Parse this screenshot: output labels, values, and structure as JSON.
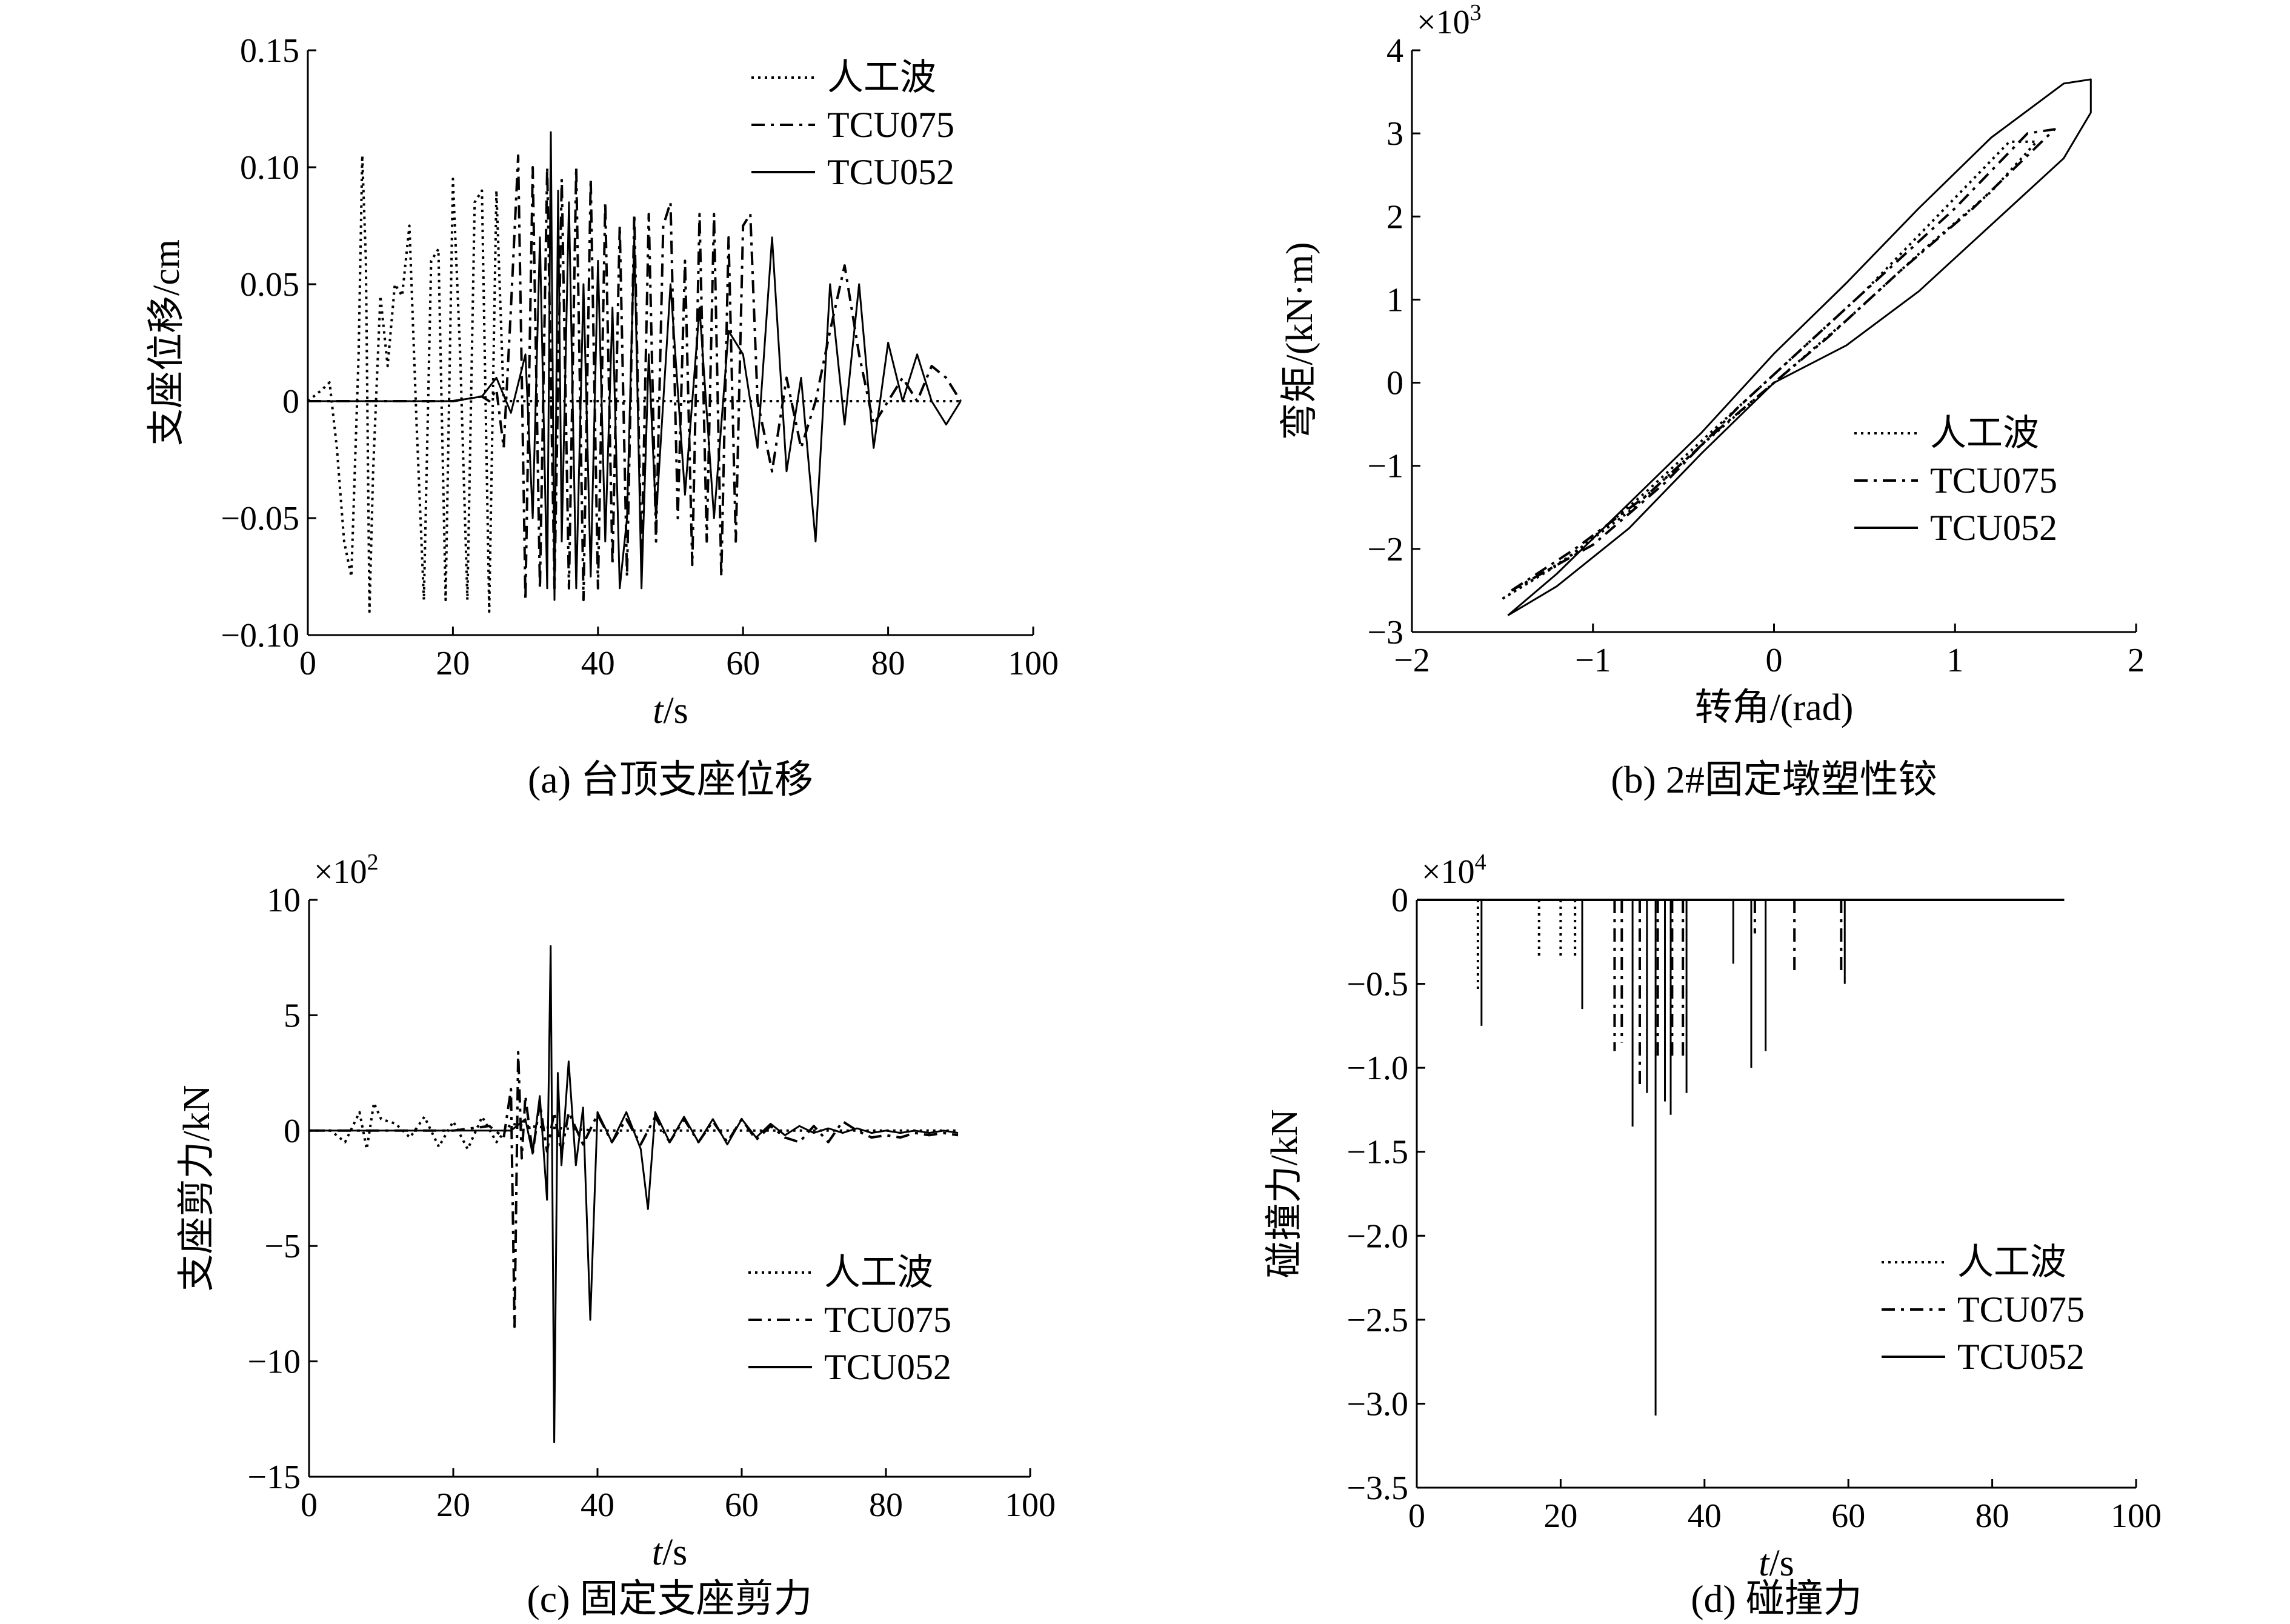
{
  "chart_data": [
    {
      "id": "a",
      "type": "line",
      "caption": "(a) 台顶支座位移",
      "xlabel_italic": "t",
      "xlabel_rest": "/s",
      "ylabel": "支座位移/cm",
      "xlim": [
        0,
        100
      ],
      "ylim": [
        -0.1,
        0.15
      ],
      "xticks": [
        0,
        20,
        40,
        60,
        80,
        100
      ],
      "xtick_labels": [
        "0",
        "20",
        "40",
        "60",
        "80",
        "100"
      ],
      "yticks": [
        0.15,
        0.1,
        0.05,
        0,
        -0.05,
        -0.1
      ],
      "ytick_labels": [
        "0.15",
        "0.10",
        "0.05",
        "0",
        "−0.05",
        "−0.10"
      ],
      "legend_position": "top-right",
      "series": [
        {
          "name": "人工波",
          "style": "dotted",
          "x": [
            0,
            2,
            3,
            4,
            5,
            6,
            7,
            7.5,
            8,
            8.5,
            9,
            10,
            11,
            12,
            13,
            14,
            15,
            16,
            17,
            18,
            19,
            20,
            21,
            22,
            23,
            24,
            25,
            26,
            27,
            28,
            30,
            35,
            40,
            50,
            60,
            70,
            80,
            90
          ],
          "y": [
            0,
            0.005,
            0.008,
            -0.02,
            -0.06,
            -0.075,
            0.02,
            0.105,
            0.06,
            -0.09,
            -0.03,
            0.045,
            0.015,
            0.05,
            0.045,
            0.075,
            -0.01,
            -0.085,
            0.06,
            0.065,
            -0.085,
            0.095,
            0.02,
            -0.085,
            0.085,
            0.09,
            -0.09,
            0.09,
            0.0,
            0.0,
            0.0,
            0.0,
            0.0,
            0.0,
            0.0,
            0.0,
            0.0,
            0.0
          ]
        },
        {
          "name": "TCU075",
          "style": "dashdot",
          "x": [
            0,
            10,
            20,
            24,
            25,
            26,
            27,
            28,
            29,
            30,
            31,
            32,
            33,
            34,
            35,
            36,
            37,
            38,
            39,
            40,
            41,
            42,
            43,
            44,
            45,
            46,
            47,
            48,
            49,
            50,
            51,
            52,
            53,
            54,
            55,
            56,
            57,
            58,
            59,
            60,
            61,
            62,
            64,
            66,
            68,
            70,
            72,
            74,
            76,
            78,
            80,
            82,
            84,
            86,
            88,
            90
          ],
          "y": [
            0,
            0,
            0,
            0.002,
            0.0,
            0.005,
            -0.02,
            0.04,
            0.105,
            -0.085,
            0.1,
            -0.08,
            0.1,
            -0.08,
            0.095,
            -0.08,
            0.1,
            -0.085,
            0.095,
            -0.08,
            0.085,
            -0.07,
            0.075,
            -0.075,
            0.08,
            -0.07,
            0.08,
            -0.06,
            0.075,
            0.085,
            -0.05,
            0.06,
            -0.07,
            0.08,
            -0.06,
            0.08,
            -0.075,
            0.07,
            -0.06,
            0.075,
            0.08,
            0.0,
            -0.03,
            0.01,
            -0.02,
            0.0,
            0.03,
            0.058,
            0.02,
            -0.01,
            0.0,
            0.01,
            0.0,
            0.015,
            0.01,
            0.0
          ]
        },
        {
          "name": "TCU052",
          "style": "solid",
          "x": [
            0,
            10,
            20,
            24,
            26,
            28,
            30,
            31,
            32,
            33,
            33.5,
            34,
            34.5,
            35,
            36,
            37,
            38,
            39,
            40,
            41,
            42,
            43,
            44,
            45,
            46,
            47,
            48,
            50,
            52,
            54,
            56,
            58,
            60,
            62,
            64,
            66,
            68,
            70,
            72,
            74,
            76,
            78,
            80,
            82,
            84,
            86,
            88,
            90
          ],
          "y": [
            0,
            0,
            0,
            0.002,
            0.01,
            -0.005,
            0.02,
            -0.05,
            0.07,
            -0.08,
            0.115,
            -0.085,
            0.09,
            -0.06,
            0.085,
            -0.08,
            0.05,
            -0.075,
            0.06,
            -0.06,
            0.04,
            -0.08,
            -0.05,
            0.07,
            -0.08,
            0.02,
            -0.05,
            0.05,
            -0.04,
            0.04,
            -0.05,
            0.03,
            0.02,
            -0.02,
            0.07,
            -0.03,
            0.01,
            -0.06,
            0.05,
            -0.01,
            0.05,
            -0.02,
            0.025,
            0.0,
            0.02,
            0.0,
            -0.01,
            0.0
          ]
        }
      ]
    },
    {
      "id": "b",
      "type": "line",
      "caption": "(b) 2#固定墩塑性铰",
      "xlabel": "转角/(rad)",
      "ylabel": "弯矩/(kN·m)",
      "multiplier_base": "×10",
      "multiplier_exp": "3",
      "xlim": [
        -2,
        2
      ],
      "ylim": [
        -3,
        4
      ],
      "xticks": [
        -2,
        -1,
        0,
        1,
        2
      ],
      "xtick_labels": [
        "−2",
        "−1",
        "0",
        "1",
        "2"
      ],
      "yticks": [
        4,
        3,
        2,
        1,
        0,
        -1,
        -2,
        -3
      ],
      "ytick_labels": [
        "4",
        "3",
        "2",
        "1",
        "0",
        "−1",
        "−2",
        "−3"
      ],
      "legend_position": "bottom-right",
      "series": [
        {
          "name": "人工波",
          "style": "dotted",
          "x": [
            -1.5,
            -1.2,
            -0.8,
            -0.4,
            0,
            0.4,
            0.8,
            1.2,
            1.45,
            1.3,
            0.9,
            0.5,
            0.1,
            -0.3,
            -0.7,
            -1.1,
            -1.5
          ],
          "y": [
            -2.6,
            -2.2,
            -1.55,
            -0.75,
            0,
            0.75,
            1.55,
            2.3,
            2.9,
            2.9,
            2.0,
            1.1,
            0.3,
            -0.5,
            -1.3,
            -2.05,
            -2.6
          ]
        },
        {
          "name": "TCU075",
          "style": "dashdot",
          "x": [
            -1.45,
            -1.1,
            -0.7,
            -0.3,
            0,
            0.3,
            0.7,
            1.1,
            1.55,
            1.4,
            1.0,
            0.6,
            0.2,
            -0.2,
            -0.6,
            -1.0,
            -1.45
          ],
          "y": [
            -2.5,
            -2.0,
            -1.35,
            -0.55,
            0,
            0.55,
            1.35,
            2.1,
            3.05,
            3.0,
            2.1,
            1.3,
            0.5,
            -0.3,
            -1.2,
            -1.95,
            -2.5
          ]
        },
        {
          "name": "TCU052",
          "style": "solid",
          "x": [
            -1.47,
            -1.2,
            -0.8,
            -0.4,
            0,
            0.4,
            0.8,
            1.2,
            1.6,
            1.75,
            1.75,
            1.6,
            1.2,
            0.8,
            0.4,
            0.0,
            -0.4,
            -0.8,
            -1.2,
            -1.47
          ],
          "y": [
            -2.8,
            -2.45,
            -1.75,
            -0.85,
            0,
            0.45,
            1.1,
            1.9,
            2.7,
            3.25,
            3.65,
            3.6,
            2.95,
            2.1,
            1.2,
            0.35,
            -0.6,
            -1.45,
            -2.3,
            -2.8
          ]
        }
      ]
    },
    {
      "id": "c",
      "type": "line",
      "caption": "(c) 固定支座剪力",
      "xlabel_italic": "t",
      "xlabel_rest": "/s",
      "ylabel": "支座剪力/kN",
      "multiplier_base": "×10",
      "multiplier_exp": "2",
      "xlim": [
        0,
        100
      ],
      "ylim": [
        -15,
        10
      ],
      "xticks": [
        0,
        20,
        40,
        60,
        80,
        100
      ],
      "xtick_labels": [
        "0",
        "20",
        "40",
        "60",
        "80",
        "100"
      ],
      "yticks": [
        10,
        5,
        0,
        -5,
        -10,
        -15
      ],
      "ytick_labels": [
        "10",
        "5",
        "0",
        "−5",
        "−10",
        "−15"
      ],
      "legend_position": "bottom-right",
      "series": [
        {
          "name": "人工波",
          "style": "dotted",
          "x": [
            0,
            3,
            5,
            7,
            8,
            9,
            10,
            12,
            14,
            16,
            18,
            20,
            22,
            24,
            26,
            28,
            30,
            40,
            60,
            80,
            90
          ],
          "y": [
            0,
            0,
            -0.5,
            0.8,
            -0.8,
            1.2,
            0.5,
            0.3,
            -0.3,
            0.6,
            -0.7,
            0.4,
            -0.8,
            0.6,
            -0.5,
            0.3,
            0.2,
            0.0,
            0.0,
            0.0,
            0.0
          ]
        },
        {
          "name": "TCU075",
          "style": "dashdot",
          "x": [
            0,
            10,
            20,
            25,
            27,
            28,
            28.5,
            29,
            29.5,
            30,
            31,
            32,
            33,
            34,
            35,
            36,
            38,
            40,
            42,
            44,
            46,
            48,
            50,
            52,
            54,
            56,
            58,
            60,
            62,
            64,
            66,
            68,
            70,
            72,
            74,
            76,
            78,
            80,
            82,
            84,
            86,
            88,
            90
          ],
          "y": [
            0,
            0,
            0,
            0.2,
            -0.3,
            1.8,
            -8.5,
            3.4,
            -1.2,
            1.5,
            -1.0,
            1.2,
            -0.9,
            0.8,
            -1.0,
            0.8,
            -0.6,
            0.7,
            -0.5,
            0.5,
            -0.6,
            0.6,
            -0.5,
            0.5,
            -0.5,
            0.4,
            -0.5,
            0.5,
            -0.4,
            0.2,
            -0.3,
            -0.5,
            0.2,
            -0.5,
            0.4,
            0.0,
            -0.3,
            -0.2,
            -0.3,
            -0.1,
            -0.2,
            -0.1,
            -0.2
          ]
        },
        {
          "name": "TCU052",
          "style": "solid",
          "x": [
            0,
            10,
            20,
            28,
            30,
            31,
            32,
            33,
            33.5,
            34,
            34.5,
            35,
            36,
            37,
            38,
            39,
            40,
            42,
            44,
            46,
            47,
            48,
            50,
            52,
            54,
            56,
            58,
            60,
            62,
            64,
            66,
            68,
            70,
            72,
            74,
            76,
            78,
            80,
            82,
            84,
            86,
            88,
            90
          ],
          "y": [
            0,
            0,
            0,
            0,
            0.5,
            -1.0,
            1.5,
            -3.0,
            8.0,
            -13.5,
            2.5,
            -1.5,
            3.0,
            -1.5,
            1.0,
            -8.2,
            0.8,
            -0.5,
            0.8,
            -0.8,
            -3.4,
            0.8,
            -0.5,
            0.6,
            -0.5,
            0.5,
            -0.6,
            0.5,
            -0.3,
            0.3,
            -0.2,
            0.2,
            -0.1,
            0.1,
            -0.1,
            0.1,
            -0.1,
            0.0,
            -0.1,
            0.0,
            -0.1,
            0.0,
            -0.1
          ]
        }
      ]
    },
    {
      "id": "d",
      "type": "line",
      "caption": "(d) 碰撞力",
      "xlabel_italic": "t",
      "xlabel_rest": "/s",
      "ylabel": "碰撞力/kN",
      "multiplier_base": "×10",
      "multiplier_exp": "4",
      "xlim": [
        0,
        100
      ],
      "ylim": [
        -3.5,
        0
      ],
      "xticks": [
        0,
        20,
        40,
        60,
        80,
        100
      ],
      "xtick_labels": [
        "0",
        "20",
        "40",
        "60",
        "80",
        "100"
      ],
      "yticks": [
        0,
        -0.5,
        -1.0,
        -1.5,
        -2.0,
        -2.5,
        -3.0,
        -3.5
      ],
      "ytick_labels": [
        "0",
        "−0.5",
        "−1.0",
        "−1.5",
        "−2.0",
        "−2.5",
        "−3.0",
        "−3.5"
      ],
      "legend_position": "bottom-right",
      "series": [
        {
          "name": "人工波",
          "style": "dotted",
          "spikes": [
            [
              8.5,
              -0.55
            ],
            [
              17,
              -0.35
            ],
            [
              20,
              -0.35
            ],
            [
              22,
              -0.35
            ]
          ]
        },
        {
          "name": "TCU075",
          "style": "dashdot",
          "spikes": [
            [
              27.5,
              -0.9
            ],
            [
              28.5,
              -0.85
            ],
            [
              31,
              -1.1
            ],
            [
              33.5,
              -0.95
            ],
            [
              35.5,
              -0.95
            ],
            [
              37,
              -0.95
            ],
            [
              47,
              -0.2
            ],
            [
              52.5,
              -0.42
            ],
            [
              59,
              -0.45
            ]
          ]
        },
        {
          "name": "TCU052",
          "style": "solid",
          "spikes": [
            [
              9,
              -0.75
            ],
            [
              23,
              -0.65
            ],
            [
              30,
              -1.35
            ],
            [
              32,
              -1.15
            ],
            [
              33.2,
              -3.07
            ],
            [
              34.5,
              -1.2
            ],
            [
              35.3,
              -1.28
            ],
            [
              37.5,
              -1.15
            ],
            [
              44,
              -0.38
            ],
            [
              46.5,
              -1.0
            ],
            [
              48.5,
              -0.9
            ],
            [
              59.5,
              -0.5
            ]
          ]
        }
      ]
    }
  ]
}
